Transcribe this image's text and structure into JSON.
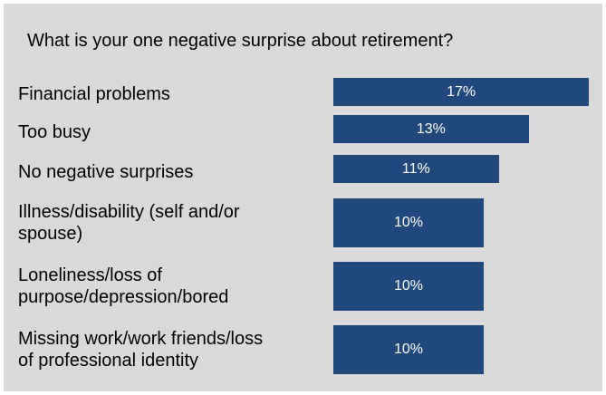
{
  "chart_data": {
    "type": "bar",
    "orientation": "horizontal",
    "title": "What is your one negative surprise about retirement?",
    "categories": [
      "Financial problems",
      "Too busy",
      "No negative surprises",
      "Illness/disability (self and/or spouse)",
      "Loneliness/loss of purpose/depression/bored",
      "Missing work/work friends/loss of professional identity"
    ],
    "category_lines": [
      [
        "Financial problems"
      ],
      [
        "Too busy"
      ],
      [
        "No negative surprises"
      ],
      [
        "Illness/disability (self and/or",
        "spouse)"
      ],
      [
        "Loneliness/loss of",
        "purpose/depression/bored"
      ],
      [
        "Missing work/work friends/loss",
        "of professional identity"
      ]
    ],
    "values": [
      17,
      13,
      11,
      10,
      10,
      10
    ],
    "data_labels": [
      "17%",
      "13%",
      "11%",
      "10%",
      "10%",
      "10%"
    ],
    "unit": "%",
    "bar_color": "#1f497d",
    "background_color": "#d9d9d9",
    "xlabel": "",
    "ylabel": "",
    "grid": false,
    "legend": "none"
  }
}
